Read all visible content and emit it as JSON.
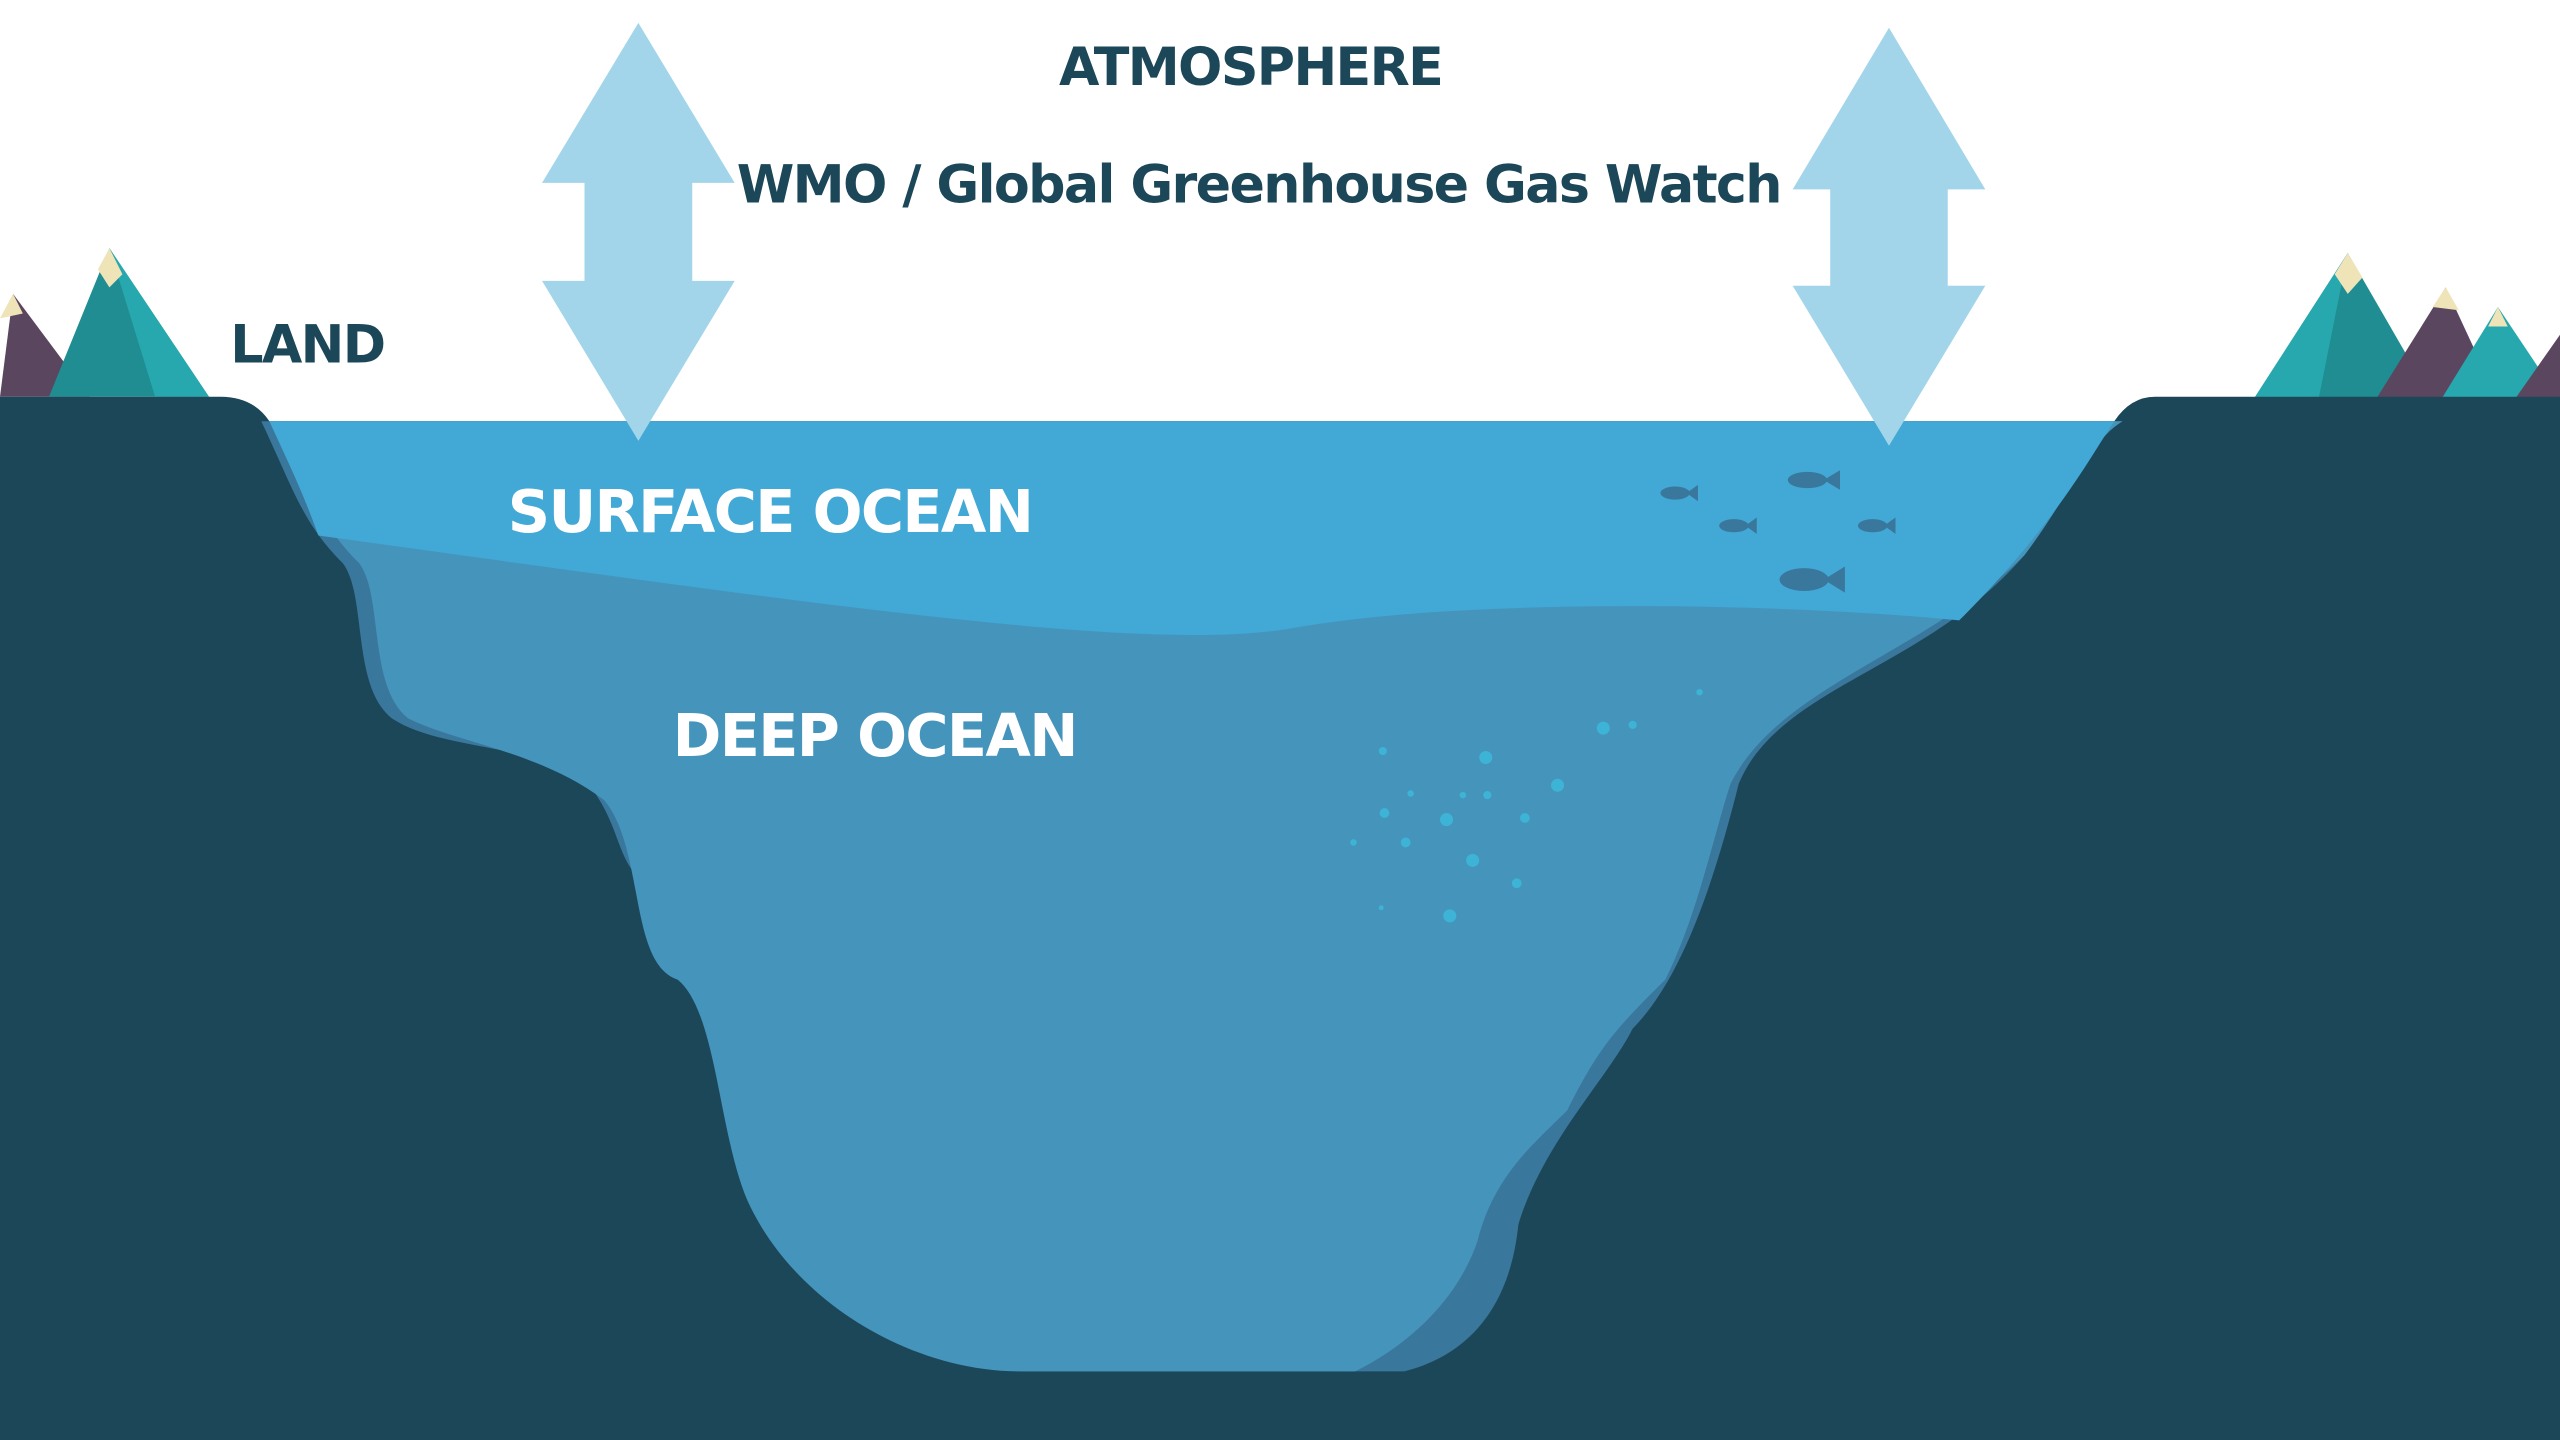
{
  "labels": {
    "atmosphere": "ATMOSPHERE",
    "source": "WMO / Global Greenhouse Gas Watch",
    "land": "LAND",
    "surface_ocean": "SURFACE OCEAN",
    "deep_ocean": "DEEP OCEAN"
  }
}
